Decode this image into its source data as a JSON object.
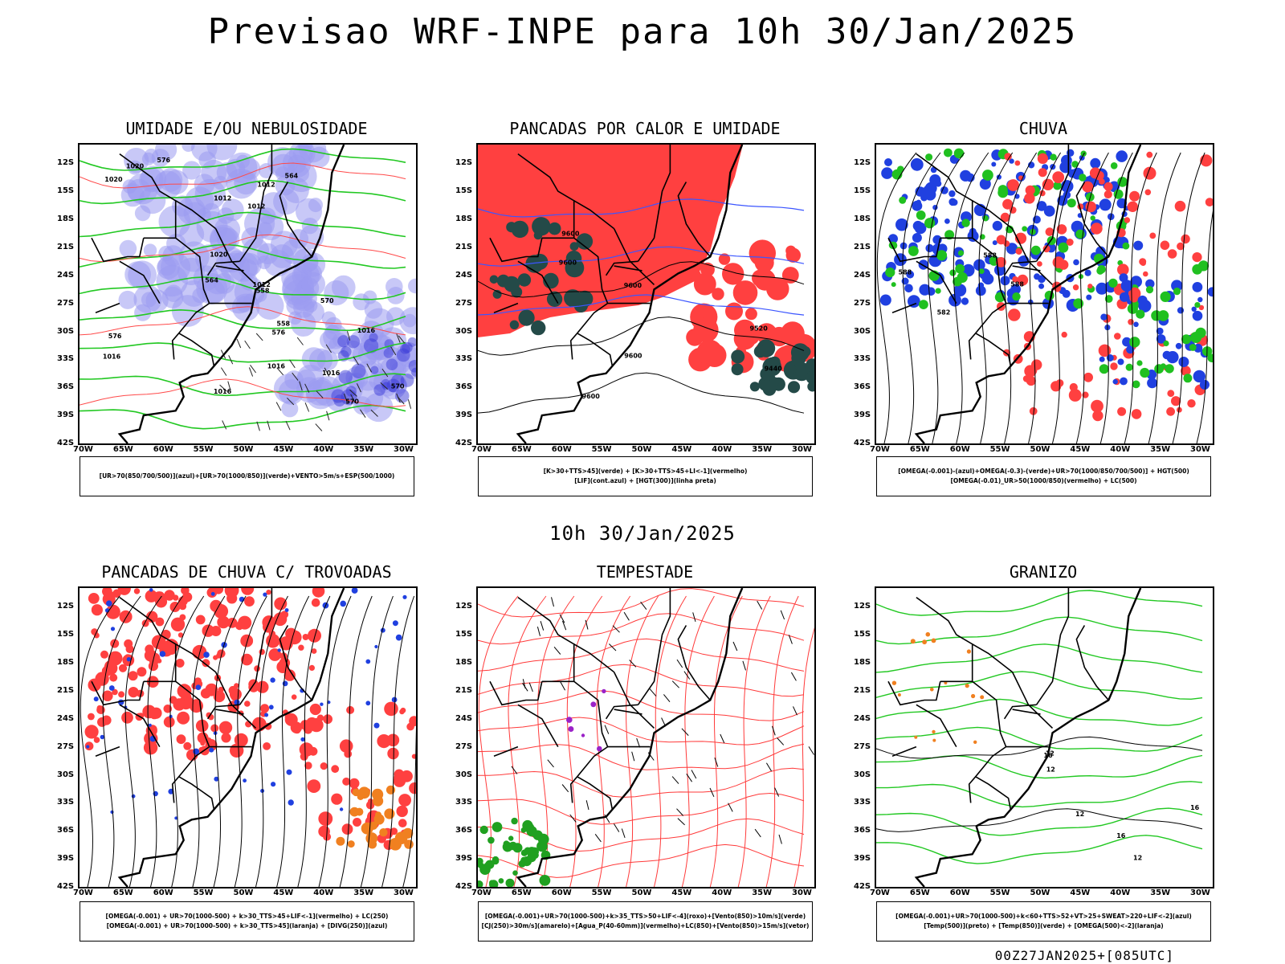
{
  "title": "Previsao WRF-INPE  para 10h 30/Jan/2025",
  "mid_title": "10h 30/Jan/2025",
  "footer": "00Z27JAN2025+[085UTC]",
  "axes": {
    "lat_ticks": [
      "12S",
      "15S",
      "18S",
      "21S",
      "24S",
      "27S",
      "30S",
      "33S",
      "36S",
      "39S",
      "42S"
    ],
    "lon_ticks": [
      "70W",
      "65W",
      "60W",
      "55W",
      "50W",
      "45W",
      "40W",
      "35W",
      "30W"
    ]
  },
  "chart_data": [
    {
      "type": "map",
      "title": "UMIDADE E/OU NEBULOSIDADE",
      "legend": [
        "[UR>70(850/700/500)](azul)+[UR>70(1000/850)](verde)+VENTO>5m/s+ESP(500/1000)"
      ],
      "contour_labels": [
        "1012",
        "1012",
        "1012",
        "1012",
        "1016",
        "1016",
        "1016",
        "1016",
        "1016",
        "1020",
        "1020",
        "1020",
        "576",
        "576",
        "576",
        "570",
        "570",
        "570",
        "564",
        "564",
        "558",
        "558"
      ],
      "xlim": [
        -70,
        -28
      ],
      "ylim": [
        -42,
        -10
      ]
    },
    {
      "type": "map",
      "title": "PANCADAS POR CALOR E UMIDADE",
      "legend": [
        "[K>30+TTS>45](verde) + [K>30+TTS>45+LI<-1](vermelho)",
        "[LIF](cont.azul) + [HGT(300)](linha preta)"
      ],
      "contour_labels": [
        "9600",
        "9600",
        "9600",
        "9600",
        "9600",
        "9520",
        "9440"
      ],
      "xlim": [
        -70,
        -28
      ],
      "ylim": [
        -42,
        -10
      ]
    },
    {
      "type": "map",
      "title": "CHUVA",
      "legend": [
        "[OMEGA(-0.001)-(azul)+OMEGA(-0.3)-(verde)+UR>70(1000/850/700/500)] + HGT(500)",
        "[OMEGA(-0.01)_UR>50(1000/850)(vermelho) + LC(500)"
      ],
      "contour_labels": [
        "588",
        "582",
        "588",
        "588"
      ],
      "xlim": [
        -70,
        -28
      ],
      "ylim": [
        -42,
        -10
      ]
    },
    {
      "type": "map",
      "title": "PANCADAS DE CHUVA C/ TROVOADAS",
      "legend": [
        "[OMEGA(-0.001) + UR>70(1000-500) + k>30_TTS>45+LIF<-1](vermelho) + LC(250)",
        "[OMEGA(-0.001) + UR>70(1000-500) + k>30_TTS>45](laranja) + [DIVG(250)](azul)"
      ],
      "contour_labels": [],
      "xlim": [
        -70,
        -28
      ],
      "ylim": [
        -42,
        -10
      ]
    },
    {
      "type": "map",
      "title": "TEMPESTADE",
      "legend": [
        "[OMEGA(-0.001)+UR>70(1000-500)+k>35_TTS>50+LIF<-4](roxo)+[Vento(850)>10m/s](verde)",
        "[CJ(250)>30m/s](amarelo)+[Agua_P(40-60mm)](vermelho)+LC(850)+[Vento(850)>15m/s](vetor)"
      ],
      "contour_labels": [],
      "xlim": [
        -70,
        -28
      ],
      "ylim": [
        -42,
        -10
      ]
    },
    {
      "type": "map",
      "title": "GRANIZO",
      "legend": [
        "[OMEGA(-0.001)+UR>70(1000-500)+k<60+TTS>52+VT>25+SWEAT>220+LIF<-2](azul)",
        "[Temp(500)](preto) + [Temp(850)](verde) + [OMEGA(500)<-2](laranja)"
      ],
      "contour_labels": [
        "12",
        "12",
        "12",
        "12",
        "16",
        "16",
        "16"
      ],
      "xlim": [
        -70,
        -28
      ],
      "ylim": [
        -42,
        -10
      ]
    }
  ]
}
